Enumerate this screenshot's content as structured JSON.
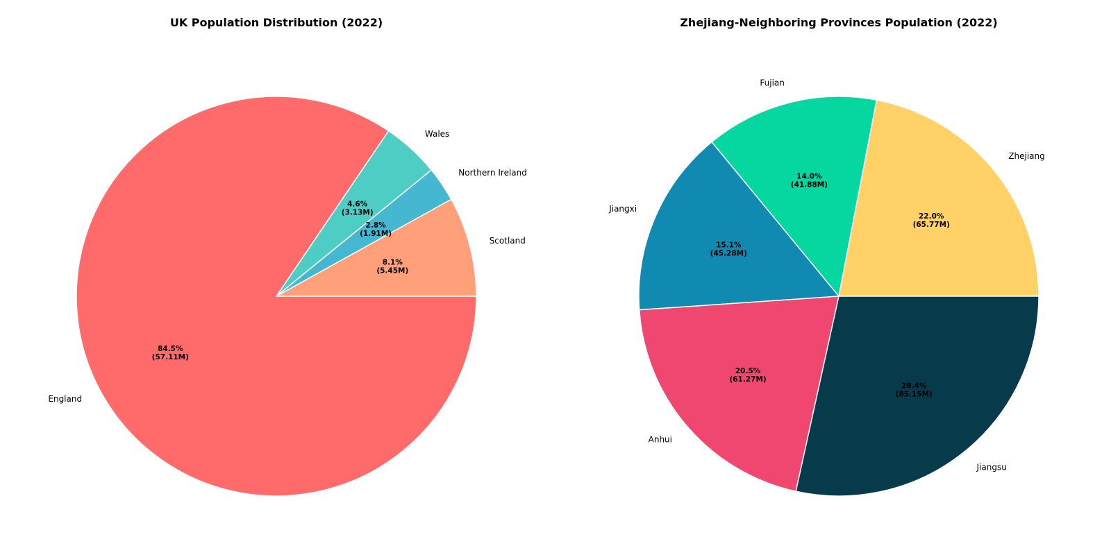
{
  "chart_data": [
    {
      "type": "pie",
      "title": "UK Population Distribution (2022)",
      "start_angle_deg": 0,
      "direction": "counterclockwise",
      "slices": [
        {
          "label": "Scotland",
          "value": 5.45,
          "percent_label": "8.1%",
          "value_label": "(5.45M)",
          "color": "#FFA07A"
        },
        {
          "label": "Northern Ireland",
          "value": 1.91,
          "percent_label": "2.8%",
          "value_label": "(1.91M)",
          "color": "#45B7D1"
        },
        {
          "label": "Wales",
          "value": 3.13,
          "percent_label": "4.6%",
          "value_label": "(3.13M)",
          "color": "#4ECDC4"
        },
        {
          "label": "England",
          "value": 57.11,
          "percent_label": "84.5%",
          "value_label": "(57.11M)",
          "color": "#FF6B6B"
        }
      ]
    },
    {
      "type": "pie",
      "title": "Zhejiang-Neighboring Provinces Population (2022)",
      "start_angle_deg": 0,
      "direction": "counterclockwise",
      "slices": [
        {
          "label": "Zhejiang",
          "value": 65.77,
          "percent_label": "22.0%",
          "value_label": "(65.77M)",
          "color": "#FFD166"
        },
        {
          "label": "Fujian",
          "value": 41.88,
          "percent_label": "14.0%",
          "value_label": "(41.88M)",
          "color": "#06D6A0"
        },
        {
          "label": "Jiangxi",
          "value": 45.28,
          "percent_label": "15.1%",
          "value_label": "(45.28M)",
          "color": "#118AB2"
        },
        {
          "label": "Anhui",
          "value": 61.27,
          "percent_label": "20.5%",
          "value_label": "(61.27M)",
          "color": "#EF476F"
        },
        {
          "label": "Jiangsu",
          "value": 85.15,
          "percent_label": "28.4%",
          "value_label": "(85.15M)",
          "color": "#073B4C"
        }
      ]
    }
  ]
}
